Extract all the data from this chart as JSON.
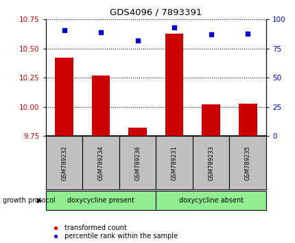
{
  "title": "GDS4096 / 7893391",
  "samples": [
    "GSM789232",
    "GSM789234",
    "GSM789236",
    "GSM789231",
    "GSM789233",
    "GSM789235"
  ],
  "red_values": [
    10.42,
    10.27,
    9.82,
    10.63,
    10.02,
    10.03
  ],
  "blue_values": [
    91,
    89,
    82,
    93,
    87,
    88
  ],
  "ylim_left": [
    9.75,
    10.75
  ],
  "ylim_right": [
    0,
    100
  ],
  "yticks_left": [
    9.75,
    10.0,
    10.25,
    10.5,
    10.75
  ],
  "yticks_right": [
    0,
    25,
    50,
    75,
    100
  ],
  "group1_label": "doxycycline present",
  "group2_label": "doxycycline absent",
  "group1_indices": [
    0,
    1,
    2
  ],
  "group2_indices": [
    3,
    4,
    5
  ],
  "growth_protocol_label": "growth protocol",
  "legend_red": "transformed count",
  "legend_blue": "percentile rank within the sample",
  "bar_color": "#cc0000",
  "dot_color": "#0000cc",
  "group_bg_color": "#90ee90",
  "xlabel_bg_color": "#c0c0c0",
  "title_color": "#000000",
  "left_tick_color": "#cc0000",
  "right_tick_color": "#0000cc",
  "figsize": [
    4.31,
    3.54
  ],
  "dpi": 100
}
